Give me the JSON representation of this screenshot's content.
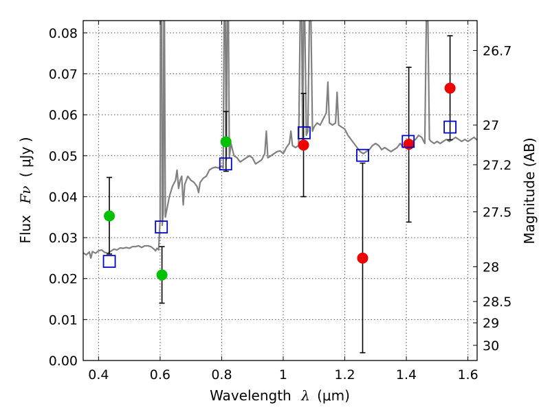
{
  "chart_data": {
    "type": "scatter",
    "xlabel_text": "Wavelength",
    "xlabel_symbol": "λ",
    "xlabel_unit": "(μm)",
    "ylabel_text": "Flux",
    "ylabel_symbol": "Fν",
    "ylabel_unit": "( μJy )",
    "y2label": "Magnitude (AB)",
    "xlim": [
      0.35,
      1.63
    ],
    "ylim": [
      0.0,
      0.083
    ],
    "grid": true,
    "x_ticks": [
      {
        "value": 0.4,
        "label": "0.4"
      },
      {
        "value": 0.6,
        "label": "0.6"
      },
      {
        "value": 0.8,
        "label": "0.8"
      },
      {
        "value": 1.0,
        "label": "1"
      },
      {
        "value": 1.2,
        "label": "1.2"
      },
      {
        "value": 1.4,
        "label": "1.4"
      },
      {
        "value": 1.6,
        "label": "1.6"
      }
    ],
    "y_ticks": [
      {
        "value": 0.0,
        "label": "0.00"
      },
      {
        "value": 0.01,
        "label": "0.01"
      },
      {
        "value": 0.02,
        "label": "0.02"
      },
      {
        "value": 0.03,
        "label": "0.03"
      },
      {
        "value": 0.04,
        "label": "0.04"
      },
      {
        "value": 0.05,
        "label": "0.05"
      },
      {
        "value": 0.06,
        "label": "0.06"
      },
      {
        "value": 0.07,
        "label": "0.07"
      },
      {
        "value": 0.08,
        "label": "0.08"
      }
    ],
    "y2_ticks": [
      {
        "flux": 0.0757,
        "label": "26.7"
      },
      {
        "flux": 0.0575,
        "label": "27"
      },
      {
        "flux": 0.0478,
        "label": "27.2"
      },
      {
        "flux": 0.0363,
        "label": "27.5"
      },
      {
        "flux": 0.0229,
        "label": "28"
      },
      {
        "flux": 0.0144,
        "label": "28.5"
      },
      {
        "flux": 0.0092,
        "label": "29"
      },
      {
        "flux": 0.0037,
        "label": "30"
      }
    ],
    "model_spectrum": {
      "color": "#808080",
      "points": [
        [
          0.35,
          0.0263
        ],
        [
          0.36,
          0.0258
        ],
        [
          0.37,
          0.0265
        ],
        [
          0.375,
          0.025
        ],
        [
          0.38,
          0.0266
        ],
        [
          0.39,
          0.0262
        ],
        [
          0.4,
          0.0268
        ],
        [
          0.41,
          0.027
        ],
        [
          0.42,
          0.0264
        ],
        [
          0.43,
          0.0262
        ],
        [
          0.44,
          0.0267
        ],
        [
          0.45,
          0.0272
        ],
        [
          0.46,
          0.027
        ],
        [
          0.47,
          0.0275
        ],
        [
          0.48,
          0.0274
        ],
        [
          0.49,
          0.0276
        ],
        [
          0.5,
          0.0274
        ],
        [
          0.51,
          0.0278
        ],
        [
          0.52,
          0.0278
        ],
        [
          0.53,
          0.028
        ],
        [
          0.54,
          0.0276
        ],
        [
          0.55,
          0.028
        ],
        [
          0.56,
          0.028
        ],
        [
          0.57,
          0.0278
        ],
        [
          0.58,
          0.0272
        ],
        [
          0.585,
          0.0268
        ],
        [
          0.59,
          0.0274
        ],
        [
          0.595,
          0.027
        ],
        [
          0.6,
          0.0345
        ],
        [
          0.601,
          0.083
        ],
        [
          0.605,
          0.083
        ],
        [
          0.607,
          0.033
        ],
        [
          0.61,
          0.036
        ],
        [
          0.612,
          0.083
        ],
        [
          0.614,
          0.083
        ],
        [
          0.617,
          0.035
        ],
        [
          0.63,
          0.04
        ],
        [
          0.64,
          0.0425
        ],
        [
          0.65,
          0.044
        ],
        [
          0.655,
          0.0465
        ],
        [
          0.66,
          0.042
        ],
        [
          0.665,
          0.044
        ],
        [
          0.67,
          0.045
        ],
        [
          0.675,
          0.038
        ],
        [
          0.68,
          0.043
        ],
        [
          0.69,
          0.045
        ],
        [
          0.7,
          0.044
        ],
        [
          0.71,
          0.0435
        ],
        [
          0.72,
          0.0425
        ],
        [
          0.725,
          0.041
        ],
        [
          0.73,
          0.0435
        ],
        [
          0.74,
          0.0445
        ],
        [
          0.75,
          0.045
        ],
        [
          0.76,
          0.0465
        ],
        [
          0.77,
          0.047
        ],
        [
          0.78,
          0.0472
        ],
        [
          0.79,
          0.047
        ],
        [
          0.8,
          0.0475
        ],
        [
          0.805,
          0.047
        ],
        [
          0.808,
          0.083
        ],
        [
          0.812,
          0.083
        ],
        [
          0.815,
          0.049
        ],
        [
          0.818,
          0.083
        ],
        [
          0.822,
          0.083
        ],
        [
          0.825,
          0.0495
        ],
        [
          0.83,
          0.053
        ],
        [
          0.84,
          0.05
        ],
        [
          0.85,
          0.0495
        ],
        [
          0.86,
          0.0485
        ],
        [
          0.87,
          0.049
        ],
        [
          0.88,
          0.0495
        ],
        [
          0.89,
          0.05
        ],
        [
          0.9,
          0.0495
        ],
        [
          0.91,
          0.048
        ],
        [
          0.92,
          0.0485
        ],
        [
          0.93,
          0.049
        ],
        [
          0.94,
          0.0505
        ],
        [
          0.945,
          0.056
        ],
        [
          0.95,
          0.0495
        ],
        [
          0.96,
          0.05
        ],
        [
          0.97,
          0.0505
        ],
        [
          0.98,
          0.051
        ],
        [
          0.99,
          0.0512
        ],
        [
          1.0,
          0.0505
        ],
        [
          1.01,
          0.052
        ],
        [
          1.02,
          0.053
        ],
        [
          1.025,
          0.056
        ],
        [
          1.03,
          0.0525
        ],
        [
          1.04,
          0.052
        ],
        [
          1.05,
          0.0525
        ],
        [
          1.055,
          0.083
        ],
        [
          1.06,
          0.083
        ],
        [
          1.063,
          0.054
        ],
        [
          1.066,
          0.083
        ],
        [
          1.07,
          0.083
        ],
        [
          1.075,
          0.055
        ],
        [
          1.08,
          0.056
        ],
        [
          1.085,
          0.083
        ],
        [
          1.09,
          0.083
        ],
        [
          1.095,
          0.056
        ],
        [
          1.1,
          0.057
        ],
        [
          1.11,
          0.058
        ],
        [
          1.12,
          0.0575
        ],
        [
          1.13,
          0.059
        ],
        [
          1.14,
          0.0605
        ],
        [
          1.145,
          0.068
        ],
        [
          1.15,
          0.058
        ],
        [
          1.16,
          0.0575
        ],
        [
          1.17,
          0.058
        ],
        [
          1.175,
          0.0655
        ],
        [
          1.18,
          0.0575
        ],
        [
          1.19,
          0.057
        ],
        [
          1.2,
          0.0565
        ],
        [
          1.21,
          0.055
        ],
        [
          1.22,
          0.054
        ],
        [
          1.23,
          0.053
        ],
        [
          1.24,
          0.052
        ],
        [
          1.25,
          0.051
        ],
        [
          1.26,
          0.0505
        ],
        [
          1.27,
          0.051
        ],
        [
          1.28,
          0.0515
        ],
        [
          1.29,
          0.0525
        ],
        [
          1.3,
          0.053
        ],
        [
          1.31,
          0.0525
        ],
        [
          1.32,
          0.0515
        ],
        [
          1.33,
          0.052
        ],
        [
          1.34,
          0.0515
        ],
        [
          1.35,
          0.051
        ],
        [
          1.36,
          0.0515
        ],
        [
          1.37,
          0.052
        ],
        [
          1.38,
          0.053
        ],
        [
          1.39,
          0.052
        ],
        [
          1.4,
          0.053
        ],
        [
          1.41,
          0.054
        ],
        [
          1.42,
          0.0535
        ],
        [
          1.43,
          0.054
        ],
        [
          1.44,
          0.055
        ],
        [
          1.45,
          0.0545
        ],
        [
          1.46,
          0.053
        ],
        [
          1.465,
          0.083
        ],
        [
          1.47,
          0.083
        ],
        [
          1.475,
          0.054
        ],
        [
          1.48,
          0.0535
        ],
        [
          1.49,
          0.053
        ],
        [
          1.5,
          0.0535
        ],
        [
          1.51,
          0.053
        ],
        [
          1.52,
          0.0535
        ],
        [
          1.53,
          0.054
        ],
        [
          1.54,
          0.0535
        ],
        [
          1.55,
          0.054
        ],
        [
          1.56,
          0.0545
        ],
        [
          1.57,
          0.054
        ],
        [
          1.58,
          0.0535
        ],
        [
          1.59,
          0.054
        ],
        [
          1.6,
          0.0535
        ],
        [
          1.61,
          0.054
        ],
        [
          1.62,
          0.0545
        ],
        [
          1.63,
          0.0538
        ]
      ]
    },
    "series": [
      {
        "marker": "circle",
        "color": "#00c000",
        "points": [
          {
            "x": 0.435,
            "y": 0.0353,
            "err": [
              0.026,
              0.0447
            ]
          },
          {
            "x": 0.606,
            "y": 0.0209,
            "err": [
              0.014,
              0.0278
            ]
          },
          {
            "x": 0.814,
            "y": 0.0534,
            "err": [
              0.0462,
              0.0608
            ]
          }
        ]
      },
      {
        "marker": "circle",
        "color": "#ee0000",
        "points": [
          {
            "x": 1.066,
            "y": 0.0526,
            "err": [
              0.04,
              0.0652
            ]
          },
          {
            "x": 1.258,
            "y": 0.025,
            "err": [
              0.0019,
              0.0482
            ]
          },
          {
            "x": 1.408,
            "y": 0.0528,
            "err": [
              0.0338,
              0.0716
            ]
          },
          {
            "x": 1.542,
            "y": 0.0665,
            "err": [
              0.0539,
              0.0793
            ]
          }
        ]
      },
      {
        "marker": "square",
        "color": "#0000cc",
        "points": [
          {
            "x": 0.435,
            "y": 0.0242
          },
          {
            "x": 0.604,
            "y": 0.0326
          },
          {
            "x": 0.813,
            "y": 0.048
          },
          {
            "x": 1.068,
            "y": 0.0556
          },
          {
            "x": 1.258,
            "y": 0.0501
          },
          {
            "x": 1.406,
            "y": 0.0535
          },
          {
            "x": 1.542,
            "y": 0.057
          }
        ]
      }
    ]
  }
}
